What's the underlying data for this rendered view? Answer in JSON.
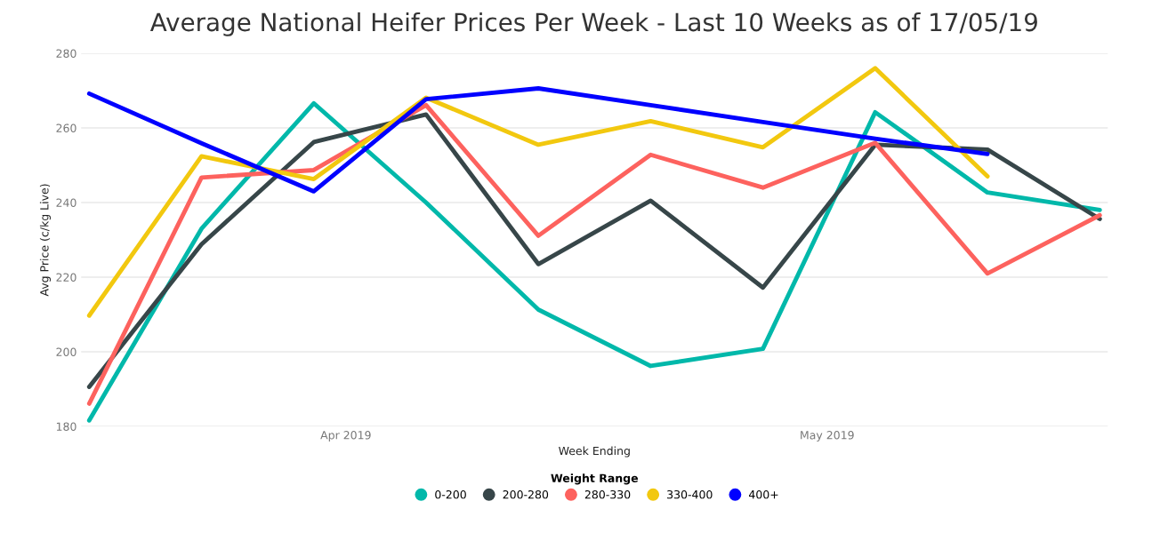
{
  "chart_data": {
    "type": "line",
    "title": "Average National Heifer Prices Per Week - Last 10 Weeks as of 17/05/19",
    "xlabel": "Week Ending",
    "ylabel": "Avg Price (c/kg Live)",
    "legend_title": "Weight Range",
    "x": [
      "2019-03-16",
      "2019-03-23",
      "2019-03-30",
      "2019-04-06",
      "2019-04-13",
      "2019-04-20",
      "2019-04-27",
      "2019-05-04",
      "2019-05-11",
      "2019-05-18"
    ],
    "series": [
      {
        "name": "0-200",
        "color": "#01b8aa",
        "values": [
          181.6,
          233,
          266.6,
          240.0,
          211.3,
          196.2,
          200.8,
          264.2,
          242.7,
          238
        ]
      },
      {
        "name": "200-280",
        "color": "#374649",
        "values": [
          190.6,
          228.8,
          256.2,
          263.6,
          223.5,
          240.5,
          217.2,
          255.5,
          254.2,
          235.6
        ]
      },
      {
        "name": "280-330",
        "color": "#fd625e",
        "values": [
          186.1,
          246.7,
          248.7,
          266.1,
          231.1,
          252.8,
          244,
          256,
          221,
          236.6
        ]
      },
      {
        "name": "330-400",
        "color": "#f2c80f",
        "values": [
          209.7,
          252.4,
          246.3,
          268.1,
          255.5,
          261.8,
          254.8,
          276,
          247,
          null
        ]
      },
      {
        "name": "400+",
        "color": "#0000ff",
        "values": [
          269.2,
          255.9,
          243,
          267.7,
          270.6,
          266.1,
          261.6,
          257.1,
          253,
          null
        ]
      }
    ],
    "xlim": [
      "2019-03-15T12:00",
      "2019-05-18T12:00"
    ],
    "xticks": [
      {
        "value": "2019-04-01",
        "label": "Apr 2019"
      },
      {
        "value": "2019-05-01",
        "label": "May 2019"
      }
    ],
    "ylim": [
      180,
      280
    ],
    "yticks": [
      180,
      200,
      220,
      240,
      260,
      280
    ],
    "grid": "y",
    "legend": "bottom",
    "marker": "none",
    "line_style": "solid"
  }
}
